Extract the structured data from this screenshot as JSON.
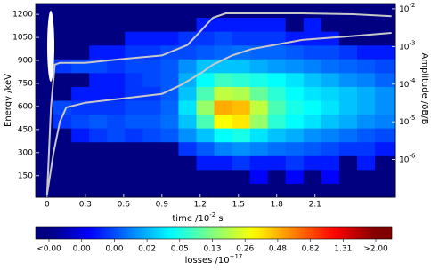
{
  "chart_data": {
    "type": "heatmap",
    "xlabel": {
      "text": "time  /10",
      "sup": "-2",
      "tail": " s"
    },
    "ylabel": "Energy  /keV",
    "y2label": "Amplitude  /δB/B",
    "xlim": [
      -0.09,
      2.73
    ],
    "xticks": [
      0,
      0.3,
      0.6,
      0.9,
      1.2,
      1.5,
      1.8,
      2.1
    ],
    "ylim": [
      10,
      1270
    ],
    "yticks": [
      150,
      300,
      450,
      600,
      750,
      900,
      1050,
      1200
    ],
    "y2lim": [
      1e-07,
      0.0138
    ],
    "y2scale": "log",
    "y2ticks": [
      {
        "value": 1e-06,
        "label": "10",
        "exponent": "-6"
      },
      {
        "value": 1e-05,
        "label": "10",
        "exponent": "-5"
      },
      {
        "value": 0.0001,
        "label": "10",
        "exponent": "-4"
      },
      {
        "value": 0.001,
        "label": "10",
        "exponent": "-3"
      },
      {
        "value": 0.01,
        "label": "10",
        "exponent": "-2"
      }
    ],
    "colormap": "jet",
    "color_scale": {
      "type": "power",
      "exponent": 4,
      "clim": [
        0,
        2
      ]
    },
    "colorbar": {
      "label": {
        "text": "losses  /10",
        "sup": "+17"
      },
      "ticks": [
        {
          "value": 0,
          "label": "<0.00"
        },
        {
          "value": 0.0002,
          "label": "0.00"
        },
        {
          "value": 0.0032,
          "label": "0.00"
        },
        {
          "value": 0.0162,
          "label": "0.02"
        },
        {
          "value": 0.0512,
          "label": "0.05"
        },
        {
          "value": 0.125,
          "label": "0.13"
        },
        {
          "value": 0.2592,
          "label": "0.26"
        },
        {
          "value": 0.4802,
          "label": "0.48"
        },
        {
          "value": 0.8192,
          "label": "0.82"
        },
        {
          "value": 1.3122,
          "label": "1.31"
        },
        {
          "value": 2,
          "label": ">2.00"
        }
      ]
    },
    "x_edges": [
      -0.09,
      0.05,
      0.19,
      0.33,
      0.47,
      0.61,
      0.75,
      0.89,
      1.03,
      1.17,
      1.31,
      1.45,
      1.59,
      1.73,
      1.87,
      2.01,
      2.15,
      2.29,
      2.43,
      2.57,
      2.73
    ],
    "y_edges": [
      10,
      100,
      190,
      280,
      370,
      460,
      550,
      640,
      730,
      820,
      910,
      1000,
      1090,
      1180,
      1270
    ],
    "z": [
      [
        0,
        0,
        0,
        0,
        0,
        0,
        0,
        0,
        0,
        0,
        0,
        0,
        0,
        0,
        0,
        0,
        0,
        0,
        0,
        0
      ],
      [
        0,
        0,
        0,
        0,
        0,
        0,
        0,
        0,
        0,
        0,
        0,
        0,
        0.0005,
        0,
        0.0005,
        0,
        0.0005,
        0,
        0,
        0
      ],
      [
        0,
        0,
        0,
        0,
        0,
        0,
        0,
        0,
        0,
        0.001,
        0.001,
        0.002,
        0.001,
        0.001,
        0.002,
        0.001,
        0.001,
        0,
        0.001,
        0
      ],
      [
        0,
        0,
        0,
        0,
        0,
        0,
        0,
        0,
        0.002,
        0.004,
        0.008,
        0.01,
        0.008,
        0.006,
        0.005,
        0.004,
        0.003,
        0.002,
        0.002,
        0.001
      ],
      [
        0,
        0,
        0.001,
        0.002,
        0.003,
        0.002,
        0.003,
        0.004,
        0.01,
        0.02,
        0.04,
        0.05,
        0.03,
        0.02,
        0.015,
        0.01,
        0.008,
        0.006,
        0.004,
        0.003
      ],
      [
        0,
        0.002,
        0.003,
        0.004,
        0.003,
        0.004,
        0.004,
        0.006,
        0.02,
        0.08,
        0.3,
        0.35,
        0.15,
        0.06,
        0.04,
        0.03,
        0.02,
        0.015,
        0.01,
        0.008
      ],
      [
        0,
        0.003,
        0.002,
        0.002,
        0.002,
        0.003,
        0.003,
        0.005,
        0.03,
        0.15,
        0.5,
        0.45,
        0.2,
        0.08,
        0.05,
        0.04,
        0.03,
        0.02,
        0.015,
        0.01
      ],
      [
        0,
        0,
        0.001,
        0.001,
        0.001,
        0.002,
        0.002,
        0.004,
        0.02,
        0.08,
        0.2,
        0.18,
        0.1,
        0.06,
        0.04,
        0.03,
        0.025,
        0.02,
        0.015,
        0.01
      ],
      [
        0,
        0,
        0,
        0.001,
        0.001,
        0.002,
        0.003,
        0.004,
        0.015,
        0.04,
        0.07,
        0.06,
        0.05,
        0.04,
        0.03,
        0.02,
        0.015,
        0.01,
        0.008,
        0.005
      ],
      [
        0,
        0.002,
        0.003,
        0.003,
        0.002,
        0.003,
        0.003,
        0.004,
        0.01,
        0.02,
        0.02,
        0.02,
        0.015,
        0.012,
        0.01,
        0.008,
        0.006,
        0.005,
        0.004,
        0.003
      ],
      [
        0,
        0,
        0,
        0.001,
        0.001,
        0.002,
        0.002,
        0.003,
        0.003,
        0.004,
        0.005,
        0.006,
        0.005,
        0.005,
        0.004,
        0.003,
        0.003,
        0.002,
        0.001,
        0.001
      ],
      [
        0,
        0,
        0,
        0,
        0,
        0.001,
        0.001,
        0.001,
        0.002,
        0.002,
        0.003,
        0.002,
        0.002,
        0.002,
        0.001,
        0.001,
        0.001,
        0,
        0,
        0
      ],
      [
        0,
        0,
        0,
        0,
        0,
        0,
        0,
        0,
        0,
        0.001,
        0.001,
        0.001,
        0.001,
        0.001,
        0,
        0.001,
        0,
        0,
        0,
        0
      ],
      [
        0,
        0,
        0,
        0,
        0,
        0,
        0,
        0,
        0,
        0,
        0,
        0,
        0,
        0,
        0,
        0,
        0,
        0,
        0,
        0
      ]
    ],
    "series": [
      {
        "color": "#c8c8c8",
        "axis": "y2",
        "x": [
          0,
          0.03,
          0.06,
          0.1,
          0.3,
          0.6,
          0.9,
          1.1,
          1.2,
          1.3,
          1.4,
          1.6,
          2.0,
          2.4,
          2.7
        ],
        "values": [
          1.2e-07,
          2.4e-05,
          0.00033,
          0.00037,
          0.00037,
          0.00047,
          0.00058,
          0.0011,
          0.0025,
          0.0058,
          0.0076,
          0.0076,
          0.0076,
          0.0072,
          0.0064
        ]
      },
      {
        "color": "#c8c8c8",
        "axis": "y2",
        "x": [
          0,
          0.05,
          0.1,
          0.15,
          0.3,
          0.6,
          0.9,
          1.05,
          1.2,
          1.3,
          1.45,
          1.6,
          2.0,
          2.4,
          2.7
        ],
        "values": [
          1.2e-07,
          1.5e-06,
          1e-05,
          2.4e-05,
          3.2e-05,
          4.2e-05,
          5.5e-05,
          9.5e-05,
          0.00019,
          0.00033,
          0.00058,
          0.00085,
          0.0015,
          0.0019,
          0.0023
        ]
      }
    ]
  }
}
